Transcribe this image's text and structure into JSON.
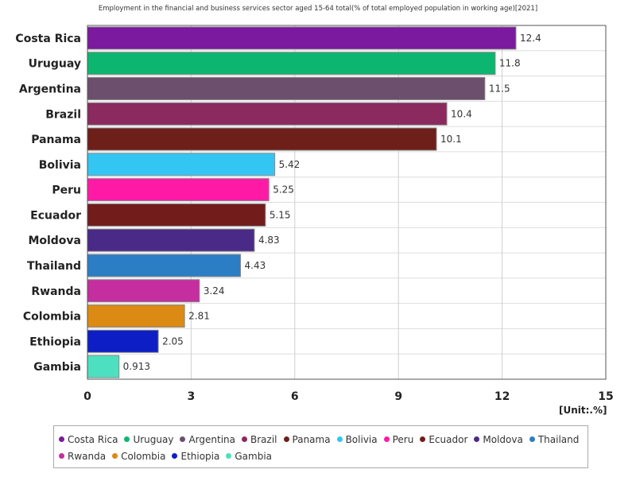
{
  "chart_data": {
    "type": "bar",
    "orientation": "horizontal",
    "title": "Employment in the financial and business services sector aged 15-64 total(% of total employed population in working age)[2021]",
    "unit_label": "[Unit:.%]",
    "xlim": [
      0,
      15
    ],
    "x_ticks": [
      "0",
      "3",
      "6",
      "9",
      "12",
      "15"
    ],
    "grid": true,
    "legend_position": "bottom",
    "categories": [
      "Costa Rica",
      "Uruguay",
      "Argentina",
      "Brazil",
      "Panama",
      "Bolivia",
      "Peru",
      "Ecuador",
      "Moldova",
      "Thailand",
      "Rwanda",
      "Colombia",
      "Ethiopia",
      "Gambia"
    ],
    "values": [
      12.4,
      11.8,
      11.5,
      10.4,
      10.1,
      5.42,
      5.25,
      5.15,
      4.83,
      4.43,
      3.24,
      2.81,
      2.05,
      0.913
    ],
    "value_labels": [
      "12.4",
      "11.8",
      "11.5",
      "10.4",
      "10.1",
      "5.42",
      "5.25",
      "5.15",
      "4.83",
      "4.43",
      "3.24",
      "2.81",
      "2.05",
      "0.913"
    ],
    "colors": [
      "#7b1a9e",
      "#0db670",
      "#6c4f6c",
      "#8a2a5e",
      "#6e1f1a",
      "#33c6f3",
      "#ff1aa6",
      "#731c1c",
      "#4a2a87",
      "#2c7ec4",
      "#c42e9e",
      "#db8a14",
      "#0d1fc4",
      "#4de0c0"
    ]
  }
}
